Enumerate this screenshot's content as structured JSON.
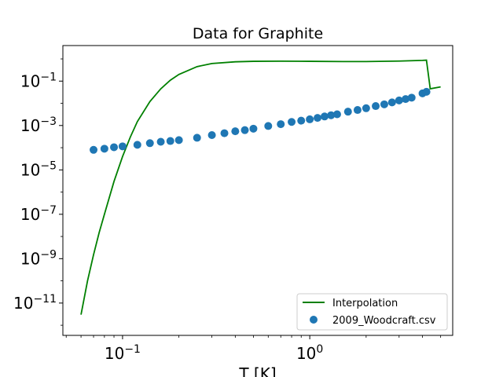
{
  "chart_data": {
    "type": "line",
    "title": "Data for Graphite",
    "xlabel": "T [K]",
    "ylabel": "",
    "xscale": "log",
    "yscale": "log",
    "xlim": [
      0.048,
      5.8
    ],
    "ylim": [
      3.5e-13,
      4.0
    ],
    "grid": false,
    "legend_position": "lower-right",
    "x_ticks": [
      {
        "value": 0.1,
        "base": "10",
        "exp": "−1"
      },
      {
        "value": 1,
        "base": "10",
        "exp": "0"
      }
    ],
    "y_ticks": [
      {
        "value": 1e-11,
        "base": "10",
        "exp": "−11"
      },
      {
        "value": 1e-09,
        "base": "10",
        "exp": "−9"
      },
      {
        "value": 1e-07,
        "base": "10",
        "exp": "−7"
      },
      {
        "value": 1e-05,
        "base": "10",
        "exp": "−5"
      },
      {
        "value": 0.001,
        "base": "10",
        "exp": "−3"
      },
      {
        "value": 0.1,
        "base": "10",
        "exp": "−1"
      }
    ],
    "series": [
      {
        "name": "Interpolation",
        "kind": "line",
        "color": "#008000",
        "x": [
          0.06,
          0.065,
          0.07,
          0.075,
          0.08,
          0.09,
          0.1,
          0.11,
          0.12,
          0.14,
          0.16,
          0.18,
          0.2,
          0.25,
          0.3,
          0.4,
          0.5,
          0.7,
          1.0,
          1.5,
          2.0,
          3.0,
          4.0,
          4.2,
          4.4,
          5.0
        ],
        "y": [
          3e-12,
          1e-10,
          1.5e-09,
          1.5e-08,
          1e-07,
          3e-06,
          4e-05,
          0.0003,
          0.0015,
          0.012,
          0.045,
          0.11,
          0.2,
          0.45,
          0.62,
          0.74,
          0.78,
          0.79,
          0.78,
          0.76,
          0.76,
          0.8,
          0.86,
          0.88,
          0.045,
          0.055
        ]
      },
      {
        "name": "2009_Woodcraft.csv",
        "kind": "scatter",
        "color": "#1f77b4",
        "x": [
          0.07,
          0.08,
          0.09,
          0.1,
          0.12,
          0.14,
          0.16,
          0.18,
          0.2,
          0.25,
          0.3,
          0.35,
          0.4,
          0.45,
          0.5,
          0.6,
          0.7,
          0.8,
          0.9,
          1.0,
          1.1,
          1.2,
          1.3,
          1.4,
          1.6,
          1.8,
          2.0,
          2.25,
          2.5,
          2.75,
          3.0,
          3.25,
          3.5,
          4.0,
          4.2
        ],
        "y": [
          8e-05,
          9e-05,
          0.000105,
          0.000115,
          0.000135,
          0.00016,
          0.000185,
          0.0002,
          0.00022,
          0.00028,
          0.00037,
          0.00045,
          0.00055,
          0.00062,
          0.00072,
          0.00095,
          0.00115,
          0.00145,
          0.00165,
          0.0019,
          0.0022,
          0.00255,
          0.0029,
          0.0032,
          0.0042,
          0.005,
          0.006,
          0.0075,
          0.009,
          0.011,
          0.0135,
          0.0155,
          0.018,
          0.028,
          0.033
        ]
      }
    ]
  }
}
